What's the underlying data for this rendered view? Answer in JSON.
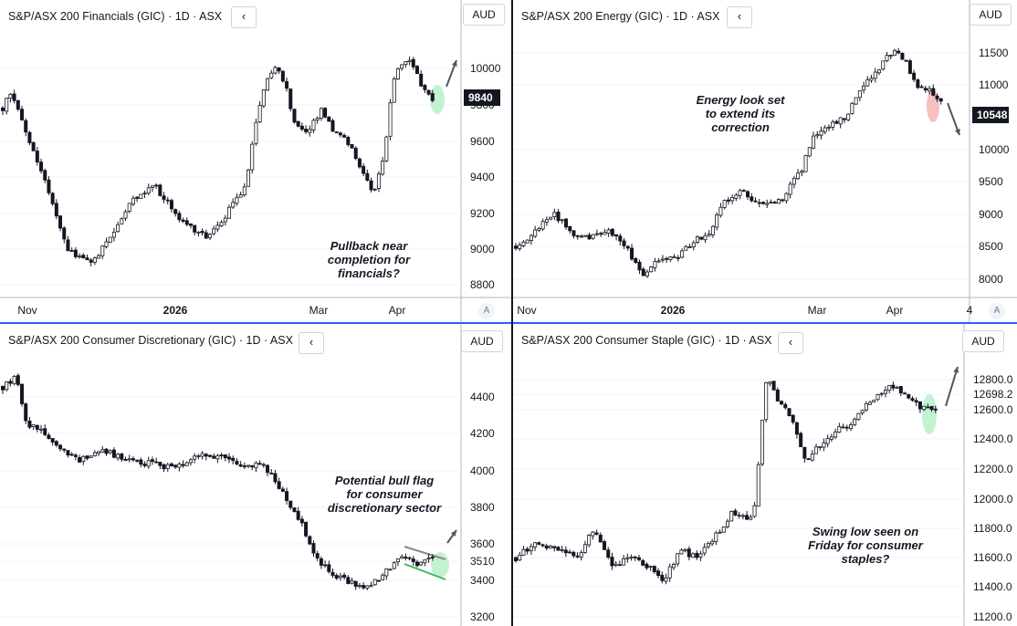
{
  "panels": [
    {
      "id": "financials",
      "title": "S&P/ASX 200 Financials (GIC) · 1D · ASX",
      "currency": "AUD",
      "last_price": "9840",
      "annotation": "Pullback near\ncompletion for\nfinancials?",
      "highlight_color": "#b9f0c8",
      "arrow": "up",
      "x_axis": [
        "Nov",
        "2026",
        "Mar",
        "Apr"
      ],
      "y_ticks": [
        "10000",
        "9800",
        "9600",
        "9400",
        "9200",
        "9000",
        "8800"
      ],
      "axis_button": "A"
    },
    {
      "id": "energy",
      "title": "S&P/ASX 200 Energy (GIC) · 1D · ASX",
      "currency": "AUD",
      "last_price": "10548",
      "annotation": "Energy look set\nto extend its\ncorrection",
      "highlight_color": "#f3b5b5",
      "arrow": "down",
      "x_axis": [
        "Nov",
        "2026",
        "Mar",
        "Apr",
        "4"
      ],
      "y_ticks": [
        "11500",
        "11000",
        "10000",
        "9500",
        "9000",
        "8500",
        "8000"
      ],
      "axis_button": "A"
    },
    {
      "id": "consumer-discretionary",
      "title": "S&P/ASX 200 Consumer Discretionary (GIC) · 1D · ASX",
      "currency": "AUD",
      "annotation": "Potential bull flag\nfor consumer\ndiscretionary sector",
      "highlight_color": "#b9f0c8",
      "arrow": "up",
      "y_ticks": [
        "4400",
        "4200",
        "4000",
        "3800",
        "3600",
        "3510",
        "3400",
        "3200"
      ]
    },
    {
      "id": "consumer-staples",
      "title": "S&P/ASX 200 Consumer Staple (GIC) · 1D · ASX",
      "currency": "AUD",
      "annotation": "Swing low seen on\nFriday for consumer\nstaples?",
      "highlight_color": "#b9f0c8",
      "arrow": "up",
      "y_ticks": [
        "12800.0",
        "12698.2",
        "12600.0",
        "12400.0",
        "12200.0",
        "12000.0",
        "11800.0",
        "11600.0",
        "11400.0",
        "11200.0"
      ]
    }
  ],
  "chart_data": [
    {
      "type": "candlestick",
      "title": "S&P/ASX 200 Financials (GIC) · 1D · ASX",
      "ylabel": "AUD",
      "ylim": [
        8700,
        10250
      ],
      "last": 9840,
      "pattern": [
        [
          0,
          9800
        ],
        [
          4,
          9900
        ],
        [
          10,
          9790
        ],
        [
          18,
          9550
        ],
        [
          30,
          9250
        ],
        [
          40,
          8950
        ],
        [
          55,
          8900
        ],
        [
          66,
          9050
        ],
        [
          78,
          9250
        ],
        [
          92,
          9350
        ],
        [
          100,
          9250
        ],
        [
          112,
          9100
        ],
        [
          124,
          9050
        ],
        [
          135,
          9150
        ],
        [
          148,
          9350
        ],
        [
          158,
          9900
        ],
        [
          166,
          10050
        ],
        [
          172,
          9950
        ],
        [
          178,
          9700
        ],
        [
          186,
          9650
        ],
        [
          194,
          9780
        ],
        [
          202,
          9650
        ],
        [
          210,
          9600
        ],
        [
          218,
          9450
        ],
        [
          226,
          9300
        ],
        [
          232,
          9500
        ],
        [
          238,
          9950
        ],
        [
          244,
          10080
        ],
        [
          250,
          10050
        ],
        [
          256,
          9900
        ],
        [
          262,
          9840
        ]
      ]
    },
    {
      "type": "candlestick",
      "title": "S&P/ASX 200 Energy (GIC) · 1D · ASX",
      "ylabel": "AUD",
      "ylim": [
        7800,
        11800
      ],
      "last": 10548,
      "pattern": [
        [
          0,
          8550
        ],
        [
          12,
          8750
        ],
        [
          24,
          9050
        ],
        [
          36,
          8750
        ],
        [
          48,
          8650
        ],
        [
          60,
          8800
        ],
        [
          72,
          8550
        ],
        [
          82,
          8100
        ],
        [
          92,
          8300
        ],
        [
          104,
          8350
        ],
        [
          116,
          8600
        ],
        [
          126,
          8750
        ],
        [
          136,
          9200
        ],
        [
          148,
          9350
        ],
        [
          160,
          9200
        ],
        [
          170,
          9150
        ],
        [
          178,
          9400
        ],
        [
          186,
          9650
        ],
        [
          194,
          10200
        ],
        [
          206,
          10400
        ],
        [
          216,
          10500
        ],
        [
          226,
          10900
        ],
        [
          236,
          11200
        ],
        [
          246,
          11500
        ],
        [
          254,
          11350
        ],
        [
          262,
          11000
        ],
        [
          270,
          10900
        ],
        [
          278,
          10700
        ]
      ]
    },
    {
      "type": "candlestick",
      "title": "S&P/ASX 200 Consumer Discretionary (GIC) · 1D · ASX",
      "ylabel": "AUD",
      "ylim": [
        3180,
        4560
      ],
      "last": 3510,
      "pattern": [
        [
          0,
          4420
        ],
        [
          8,
          4480
        ],
        [
          14,
          4230
        ],
        [
          24,
          4180
        ],
        [
          34,
          4080
        ],
        [
          46,
          4030
        ],
        [
          58,
          4090
        ],
        [
          70,
          4040
        ],
        [
          82,
          4020
        ],
        [
          94,
          4000
        ],
        [
          106,
          4010
        ],
        [
          118,
          4060
        ],
        [
          130,
          4040
        ],
        [
          142,
          4000
        ],
        [
          154,
          4000
        ],
        [
          164,
          3880
        ],
        [
          176,
          3700
        ],
        [
          186,
          3500
        ],
        [
          196,
          3420
        ],
        [
          206,
          3380
        ],
        [
          214,
          3340
        ],
        [
          222,
          3400
        ],
        [
          230,
          3470
        ],
        [
          238,
          3520
        ],
        [
          246,
          3480
        ],
        [
          254,
          3510
        ]
      ]
    },
    {
      "type": "candlestick",
      "title": "S&P/ASX 200 Consumer Staple (GIC) · 1D · ASX",
      "ylabel": "AUD",
      "ylim": [
        11180,
        12920
      ],
      "last": 12698.2,
      "pattern": [
        [
          0,
          11600
        ],
        [
          12,
          11700
        ],
        [
          24,
          11650
        ],
        [
          36,
          11600
        ],
        [
          46,
          11800
        ],
        [
          56,
          11550
        ],
        [
          66,
          11600
        ],
        [
          76,
          11550
        ],
        [
          86,
          11450
        ],
        [
          96,
          11650
        ],
        [
          106,
          11600
        ],
        [
          116,
          11750
        ],
        [
          126,
          11900
        ],
        [
          138,
          11850
        ],
        [
          146,
          12850
        ],
        [
          152,
          12650
        ],
        [
          160,
          12550
        ],
        [
          168,
          12250
        ],
        [
          176,
          12350
        ],
        [
          186,
          12450
        ],
        [
          196,
          12500
        ],
        [
          206,
          12650
        ],
        [
          216,
          12750
        ],
        [
          226,
          12700
        ],
        [
          236,
          12600
        ],
        [
          244,
          12580
        ]
      ]
    }
  ]
}
